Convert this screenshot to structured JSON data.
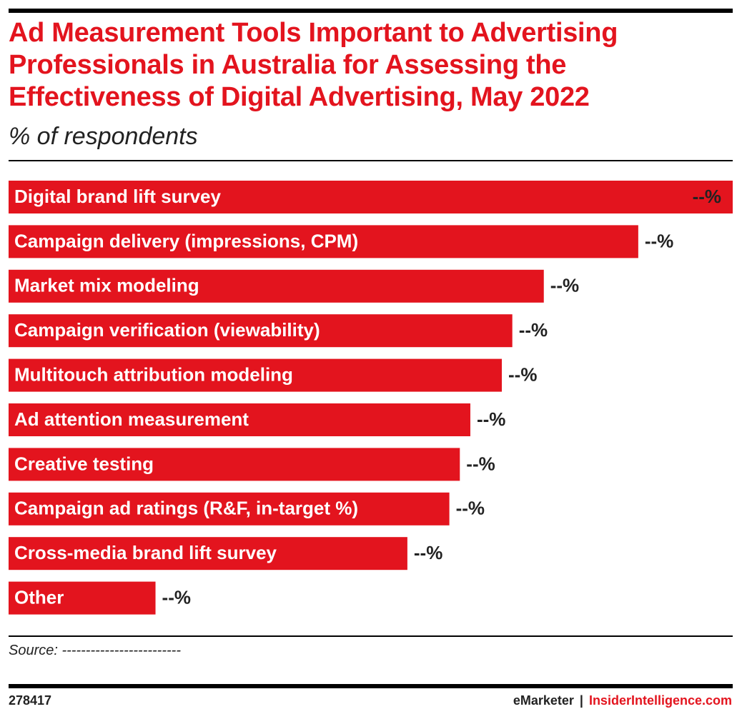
{
  "chart_data": {
    "type": "bar",
    "orientation": "horizontal",
    "title": "Ad Measurement Tools Important to Advertising Professionals in Australia for Assessing the Effectiveness of Digital Advertising, May 2022",
    "subtitle": "% of respondents",
    "categories": [
      "Digital brand lift survey",
      "Campaign delivery (impressions, CPM)",
      "Market mix modeling",
      "Campaign verification (viewability)",
      "Multitouch attribution modeling",
      "Ad attention measurement",
      "Creative testing",
      "Campaign ad ratings (R&F, in-target %)",
      "Cross-media brand lift survey",
      "Other"
    ],
    "values": [
      69,
      60,
      51,
      48,
      47,
      44,
      43,
      42,
      38,
      14
    ],
    "value_labels": [
      "--%",
      "--%",
      "--%",
      "--%",
      "--%",
      "--%",
      "--%",
      "--%",
      "--%",
      "--%"
    ],
    "color": "#e3141e",
    "xlim": [
      0,
      69
    ],
    "source": "Source: -------------------------"
  },
  "footer": {
    "id": "278417",
    "brand": "eMarketer",
    "separator": "|",
    "site": "InsiderIntelligence.com"
  }
}
